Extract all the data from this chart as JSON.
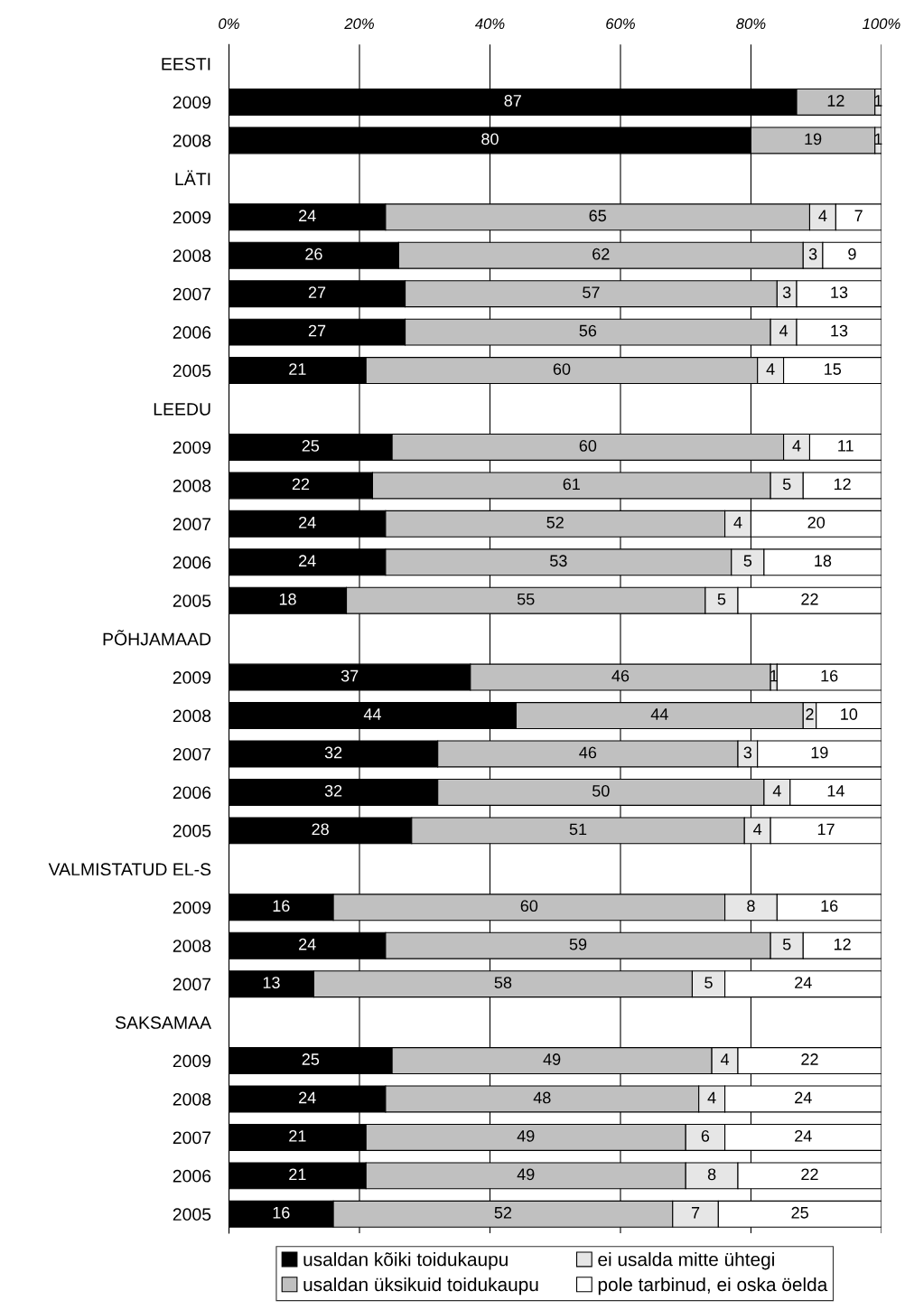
{
  "chart_data": {
    "type": "bar",
    "orientation": "horizontal",
    "stacked": true,
    "data_labels": true,
    "grid": "x",
    "legend": "bottom",
    "categories": [
      "EESTI",
      "2009",
      "2008",
      "LÄTI",
      "2009",
      "2008",
      "2007",
      "2006",
      "2005",
      "LEEDU",
      "2009",
      "2008",
      "2007",
      "2006",
      "2005",
      "PÕHJAMAAD",
      "2009",
      "2008",
      "2007",
      "2006",
      "2005",
      "VALMISTATUD EL-S",
      "2009",
      "2008",
      "2007",
      "SAKSAMAA",
      "2009",
      "2008",
      "2007",
      "2006",
      "2005"
    ],
    "xlim": [
      0,
      100
    ],
    "xticks": [
      {
        "value": 0,
        "label": "0%"
      },
      {
        "value": 20,
        "label": "20%"
      },
      {
        "value": 40,
        "label": "40%"
      },
      {
        "value": 60,
        "label": "60%"
      },
      {
        "value": 80,
        "label": "80%"
      },
      {
        "value": 100,
        "label": "100%"
      }
    ],
    "series": [
      {
        "name": "usaldan kõiki toidukaupu",
        "color": "#000000",
        "values": [
          null,
          87,
          80,
          null,
          24,
          26,
          27,
          27,
          21,
          null,
          25,
          22,
          24,
          24,
          18,
          null,
          37,
          44,
          32,
          32,
          28,
          null,
          16,
          24,
          13,
          null,
          25,
          24,
          21,
          21,
          16
        ]
      },
      {
        "name": "usaldan üksikuid toidukaupu",
        "color": "#c0c0c0",
        "values": [
          null,
          12,
          19,
          null,
          65,
          62,
          57,
          56,
          60,
          null,
          60,
          61,
          52,
          53,
          55,
          null,
          46,
          44,
          46,
          50,
          51,
          null,
          60,
          59,
          58,
          null,
          49,
          48,
          49,
          49,
          52
        ]
      },
      {
        "name": "ei usalda mitte ühtegi",
        "color": "#e6e6e6",
        "values": [
          null,
          1,
          1,
          null,
          4,
          3,
          3,
          4,
          4,
          null,
          4,
          5,
          4,
          5,
          5,
          null,
          1,
          2,
          3,
          4,
          4,
          null,
          8,
          5,
          5,
          null,
          4,
          4,
          6,
          8,
          7
        ]
      },
      {
        "name": "pole tarbinud, ei oska öelda",
        "color": "#ffffff",
        "values": [
          null,
          null,
          null,
          null,
          7,
          9,
          13,
          13,
          15,
          null,
          11,
          12,
          20,
          18,
          22,
          null,
          16,
          10,
          19,
          14,
          17,
          null,
          16,
          12,
          24,
          null,
          22,
          24,
          24,
          22,
          25
        ]
      }
    ]
  }
}
